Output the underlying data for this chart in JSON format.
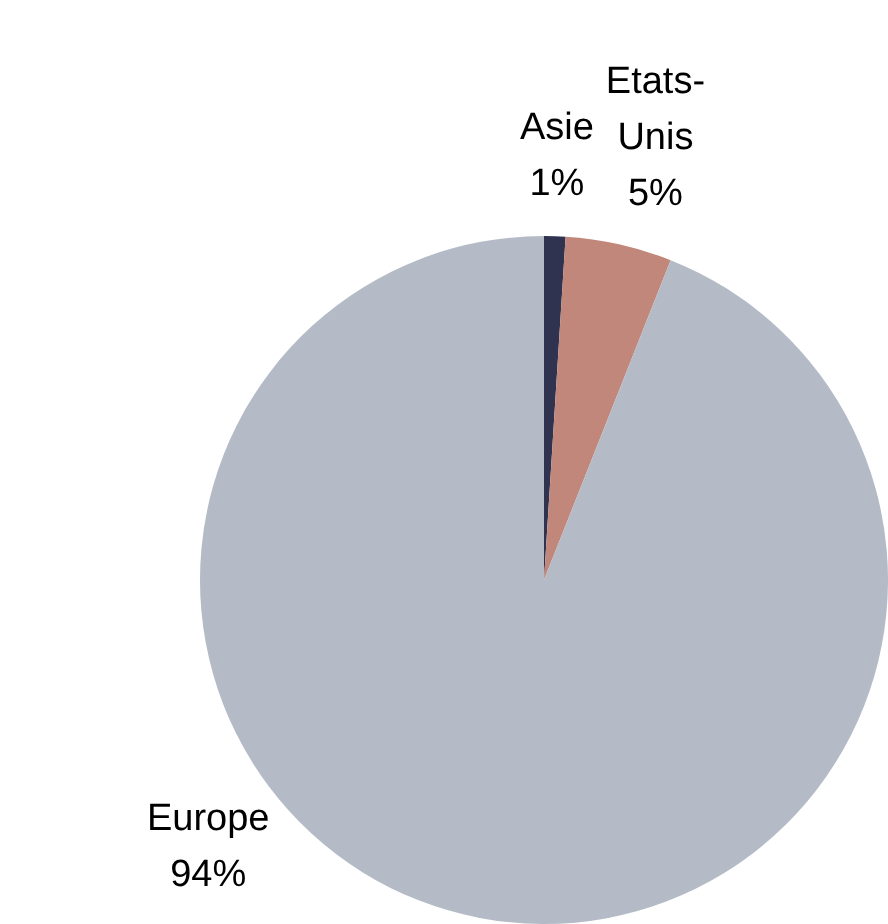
{
  "chart_data": {
    "type": "pie",
    "categories": [
      "Asie",
      "Etats-Unis",
      "Europe"
    ],
    "values": [
      1,
      5,
      94
    ],
    "colors": [
      "#2f3350",
      "#c0877a",
      "#b4bbc6"
    ],
    "value_labels": [
      "1%",
      "5%",
      "94%"
    ],
    "legend": false
  }
}
